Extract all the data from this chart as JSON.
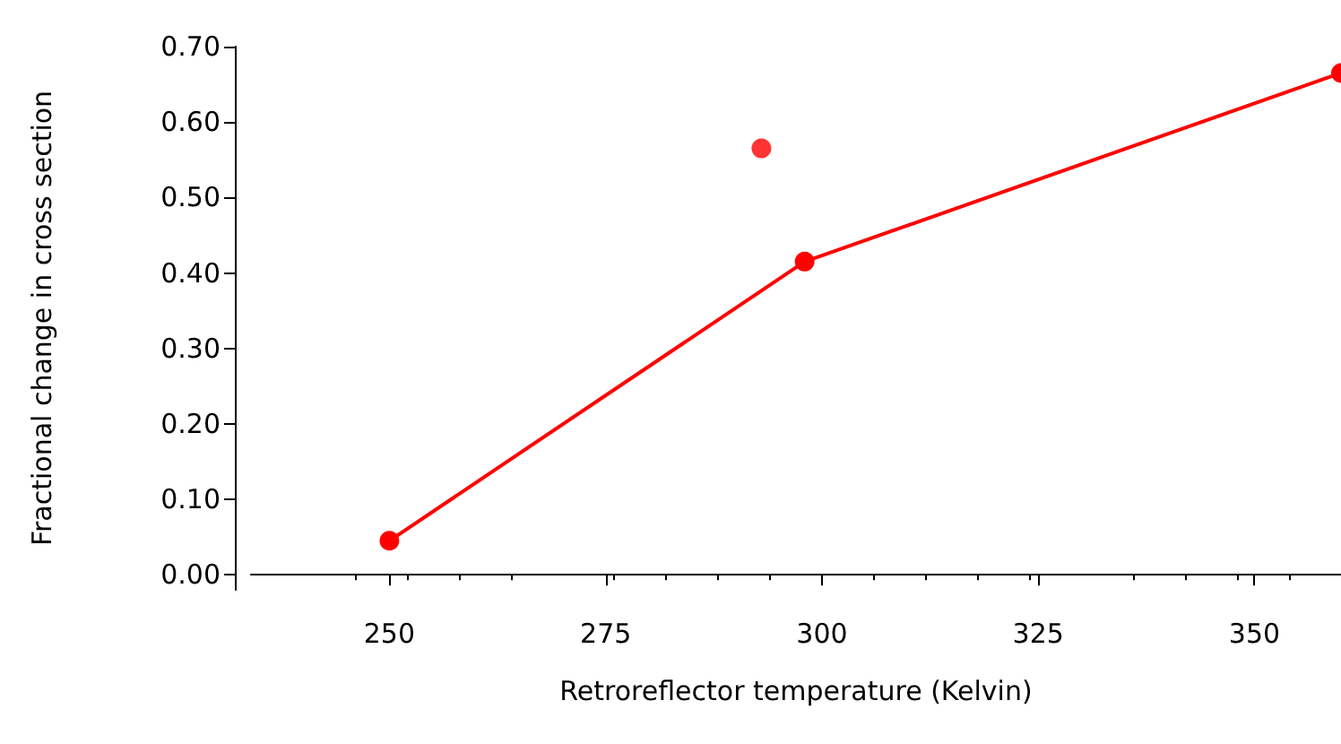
{
  "chart_data": {
    "type": "line",
    "xlabel": "Retroreflector temperature (Kelvin)",
    "ylabel": "Fractional change in cross section",
    "xlim": [
      234,
      360
    ],
    "xticks": [
      250,
      275,
      300,
      325,
      350
    ],
    "ylim": [
      -0.02,
      0.7
    ],
    "yticks": [
      {
        "value": 0,
        "label": "0.00"
      },
      {
        "value": 0.1,
        "label": "0.10"
      },
      {
        "value": 0.2,
        "label": "0.20"
      },
      {
        "value": 0.3,
        "label": "0.30"
      },
      {
        "value": 0.4,
        "label": "0.40"
      },
      {
        "value": 0.5,
        "label": "0.50"
      },
      {
        "value": 0.6,
        "label": "0.60"
      },
      {
        "value": 0.7,
        "label": "0.70"
      }
    ],
    "grid": false,
    "marker": "circle",
    "line_style": "solid",
    "series": [
      {
        "color": "#ff0000",
        "x": [
          250,
          298,
          360
        ],
        "values": [
          0.045,
          0.415,
          0.665
        ]
      },
      {
        "type": "scatter",
        "color": "#ff0000",
        "x": [
          293
        ],
        "values": [
          0.565
        ]
      }
    ]
  }
}
